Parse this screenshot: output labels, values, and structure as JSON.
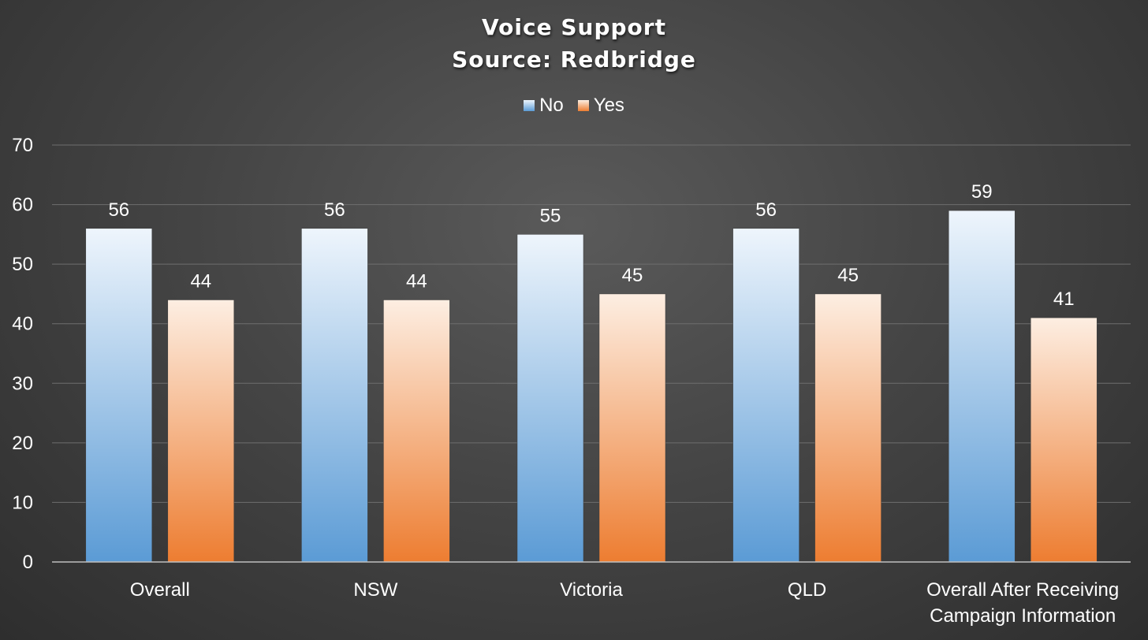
{
  "chart_data": {
    "type": "bar",
    "title": "Voice Support",
    "subtitle": "Source: Redbridge",
    "categories": [
      [
        "Overall"
      ],
      [
        "NSW"
      ],
      [
        "Victoria"
      ],
      [
        "QLD"
      ],
      [
        "Overall After Receiving",
        "Campaign Information"
      ]
    ],
    "series": [
      {
        "name": "No",
        "values": [
          56,
          56,
          55,
          56,
          59
        ],
        "color_top": "#eef5fc",
        "color_bottom": "#5b9bd5"
      },
      {
        "name": "Yes",
        "values": [
          44,
          44,
          45,
          45,
          41
        ],
        "color_top": "#fdeee2",
        "color_bottom": "#ed7d31"
      }
    ],
    "ylim": [
      0,
      70
    ],
    "yticks": [
      0,
      10,
      20,
      30,
      40,
      50,
      60,
      70
    ],
    "grid": true,
    "legend_position": "top-center",
    "data_labels": true
  }
}
